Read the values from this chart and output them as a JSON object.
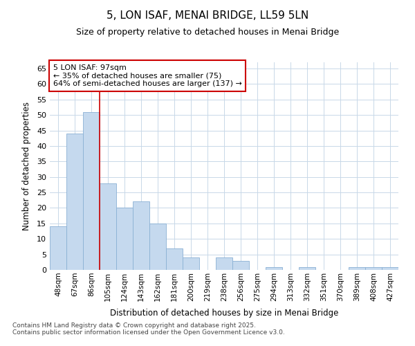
{
  "title": "5, LON ISAF, MENAI BRIDGE, LL59 5LN",
  "subtitle": "Size of property relative to detached houses in Menai Bridge",
  "xlabel": "Distribution of detached houses by size in Menai Bridge",
  "ylabel": "Number of detached properties",
  "categories": [
    "48sqm",
    "67sqm",
    "86sqm",
    "105sqm",
    "124sqm",
    "143sqm",
    "162sqm",
    "181sqm",
    "200sqm",
    "219sqm",
    "238sqm",
    "256sqm",
    "275sqm",
    "294sqm",
    "313sqm",
    "332sqm",
    "351sqm",
    "370sqm",
    "389sqm",
    "408sqm",
    "427sqm"
  ],
  "values": [
    14,
    44,
    51,
    28,
    20,
    22,
    15,
    7,
    4,
    0,
    4,
    3,
    0,
    1,
    0,
    1,
    0,
    0,
    1,
    1,
    1
  ],
  "bar_color": "#c5d9ee",
  "bar_edge_color": "#8ab0d4",
  "plot_bg_color": "#ffffff",
  "fig_bg_color": "#ffffff",
  "grid_color": "#c8d8e8",
  "ylim": [
    0,
    67
  ],
  "yticks": [
    0,
    5,
    10,
    15,
    20,
    25,
    30,
    35,
    40,
    45,
    50,
    55,
    60,
    65
  ],
  "property_line_index": 2,
  "property_line_color": "#cc0000",
  "annotation_title": "5 LON ISAF: 97sqm",
  "annotation_line1": "← 35% of detached houses are smaller (75)",
  "annotation_line2": "64% of semi-detached houses are larger (137) →",
  "annotation_box_color": "#cc0000",
  "footer_line1": "Contains HM Land Registry data © Crown copyright and database right 2025.",
  "footer_line2": "Contains public sector information licensed under the Open Government Licence v3.0."
}
